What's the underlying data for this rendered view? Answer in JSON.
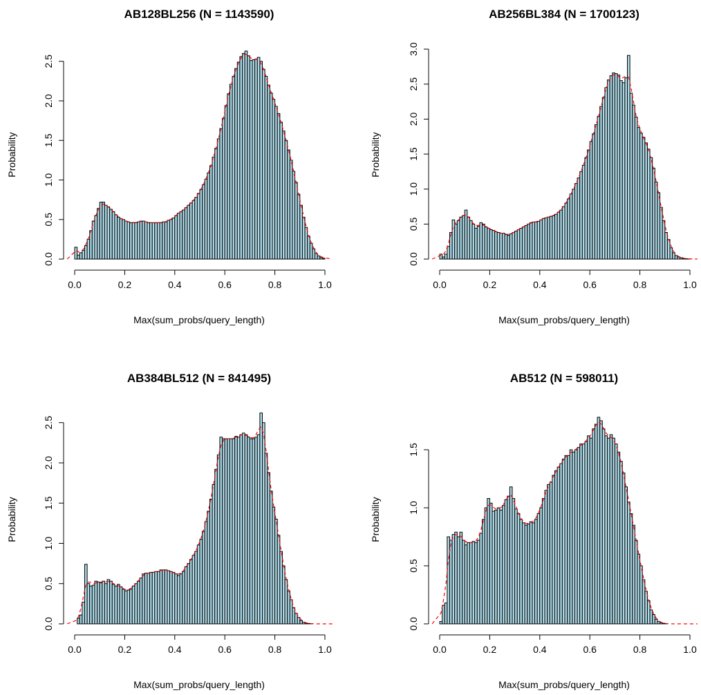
{
  "chart_data": [
    {
      "type": "bar",
      "title": "AB128BL256 (N = 1143590)",
      "xlabel": "Max(sum_probs/query_length)",
      "ylabel": "Probability",
      "xlim": [
        0,
        1
      ],
      "ylim": [
        0,
        2.6
      ],
      "xticks": [
        "0.0",
        "0.2",
        "0.4",
        "0.6",
        "0.8",
        "1.0"
      ],
      "yticks": [
        "0.0",
        "0.5",
        "1.0",
        "1.5",
        "2.0",
        "2.5"
      ],
      "bin_width": 0.01,
      "bar_color": "#add8e6",
      "density_color": "#ff0000",
      "values": [
        0.15,
        0.05,
        0.08,
        0.11,
        0.17,
        0.25,
        0.36,
        0.48,
        0.55,
        0.64,
        0.72,
        0.72,
        0.68,
        0.66,
        0.63,
        0.6,
        0.56,
        0.53,
        0.51,
        0.5,
        0.48,
        0.47,
        0.46,
        0.46,
        0.46,
        0.47,
        0.48,
        0.48,
        0.47,
        0.46,
        0.46,
        0.46,
        0.46,
        0.46,
        0.46,
        0.47,
        0.47,
        0.49,
        0.5,
        0.52,
        0.55,
        0.58,
        0.6,
        0.62,
        0.65,
        0.68,
        0.71,
        0.74,
        0.78,
        0.83,
        0.88,
        0.94,
        1.01,
        1.09,
        1.18,
        1.29,
        1.4,
        1.52,
        1.65,
        1.78,
        1.94,
        2.09,
        2.21,
        2.31,
        2.41,
        2.49,
        2.56,
        2.6,
        2.63,
        2.57,
        2.51,
        2.52,
        2.53,
        2.55,
        2.5,
        2.4,
        2.31,
        2.2,
        2.1,
        2.02,
        1.93,
        1.84,
        1.73,
        1.62,
        1.5,
        1.38,
        1.25,
        1.11,
        0.97,
        0.82,
        0.68,
        0.53,
        0.4,
        0.29,
        0.2,
        0.13,
        0.07,
        0.04,
        0.02,
        0.01
      ]
    },
    {
      "type": "bar",
      "title": "AB256BL384 (N = 1700123)",
      "xlabel": "Max(sum_probs/query_length)",
      "ylabel": "Probability",
      "xlim": [
        0,
        1
      ],
      "ylim": [
        0,
        3.0
      ],
      "xticks": [
        "0.0",
        "0.2",
        "0.4",
        "0.6",
        "0.8",
        "1.0"
      ],
      "yticks": [
        "0.0",
        "0.5",
        "1.0",
        "1.5",
        "2.0",
        "2.5",
        "3.0"
      ],
      "bin_width": 0.01,
      "bar_color": "#add8e6",
      "density_color": "#ff0000",
      "values": [
        0.07,
        0.03,
        0.07,
        0.18,
        0.38,
        0.56,
        0.5,
        0.55,
        0.6,
        0.62,
        0.7,
        0.6,
        0.55,
        0.5,
        0.44,
        0.47,
        0.52,
        0.5,
        0.46,
        0.44,
        0.42,
        0.41,
        0.39,
        0.38,
        0.37,
        0.37,
        0.35,
        0.34,
        0.36,
        0.38,
        0.4,
        0.42,
        0.44,
        0.46,
        0.48,
        0.5,
        0.52,
        0.53,
        0.53,
        0.54,
        0.56,
        0.58,
        0.59,
        0.6,
        0.61,
        0.62,
        0.64,
        0.67,
        0.7,
        0.75,
        0.8,
        0.86,
        0.93,
        1.0,
        1.08,
        1.16,
        1.25,
        1.34,
        1.45,
        1.56,
        1.68,
        1.79,
        1.92,
        2.04,
        2.18,
        2.31,
        2.45,
        2.56,
        2.62,
        2.66,
        2.65,
        2.63,
        2.55,
        2.52,
        2.59,
        2.91,
        2.37,
        2.2,
        2.03,
        1.88,
        1.8,
        1.74,
        1.66,
        1.57,
        1.45,
        1.3,
        1.1,
        0.95,
        0.74,
        0.55,
        0.38,
        0.28,
        0.16,
        0.09,
        0.05,
        0.03,
        0.02,
        0.01,
        0.005,
        0.002
      ]
    },
    {
      "type": "bar",
      "title": "AB384BL512 (N = 841495)",
      "xlabel": "Max(sum_probs/query_length)",
      "ylabel": "Probability",
      "xlim": [
        0,
        1
      ],
      "ylim": [
        0,
        2.6
      ],
      "xticks": [
        "0.0",
        "0.2",
        "0.4",
        "0.6",
        "0.8",
        "1.0"
      ],
      "yticks": [
        "0.0",
        "0.5",
        "1.0",
        "1.5",
        "2.0",
        "2.5"
      ],
      "bin_width": 0.01,
      "bar_color": "#add8e6",
      "density_color": "#ff0000",
      "values": [
        0.0,
        0.07,
        0.11,
        0.27,
        0.74,
        0.5,
        0.47,
        0.48,
        0.53,
        0.52,
        0.51,
        0.53,
        0.5,
        0.55,
        0.53,
        0.49,
        0.47,
        0.49,
        0.46,
        0.43,
        0.41,
        0.42,
        0.43,
        0.47,
        0.5,
        0.53,
        0.57,
        0.62,
        0.63,
        0.63,
        0.64,
        0.64,
        0.65,
        0.65,
        0.67,
        0.67,
        0.67,
        0.66,
        0.65,
        0.64,
        0.62,
        0.6,
        0.62,
        0.65,
        0.71,
        0.75,
        0.8,
        0.85,
        0.9,
        0.98,
        1.05,
        1.15,
        1.27,
        1.4,
        1.55,
        1.73,
        1.92,
        2.1,
        2.32,
        2.3,
        2.3,
        2.3,
        2.3,
        2.3,
        2.33,
        2.32,
        2.35,
        2.37,
        2.35,
        2.32,
        2.3,
        2.3,
        2.32,
        2.35,
        2.62,
        2.5,
        2.12,
        1.88,
        1.65,
        1.45,
        1.3,
        1.1,
        0.9,
        0.72,
        0.55,
        0.41,
        0.3,
        0.2,
        0.13,
        0.08,
        0.04,
        0.02,
        0.01,
        0.005,
        0.002,
        0.0,
        0.0,
        0.0,
        0.0,
        0.0
      ]
    },
    {
      "type": "bar",
      "title": "AB512 (N = 598011)",
      "xlabel": "Max(sum_probs/query_length)",
      "ylabel": "Probability",
      "xlim": [
        0,
        1
      ],
      "ylim": [
        0,
        1.8
      ],
      "xticks": [
        "0.0",
        "0.2",
        "0.4",
        "0.6",
        "0.8",
        "1.0"
      ],
      "yticks": [
        "0.0",
        "0.5",
        "1.0",
        "1.5"
      ],
      "bin_width": 0.01,
      "bar_color": "#add8e6",
      "density_color": "#ff0000",
      "values": [
        0.02,
        0.16,
        0.18,
        0.75,
        0.72,
        0.77,
        0.79,
        0.75,
        0.79,
        0.72,
        0.68,
        0.7,
        0.7,
        0.71,
        0.7,
        0.72,
        0.78,
        0.9,
        1.0,
        1.08,
        1.04,
        0.97,
        0.98,
        1.0,
        0.98,
        1.02,
        1.07,
        1.1,
        1.18,
        1.08,
        0.99,
        0.95,
        0.9,
        0.87,
        0.85,
        0.86,
        0.88,
        0.87,
        0.9,
        0.95,
        1.0,
        1.08,
        1.15,
        1.2,
        1.22,
        1.28,
        1.32,
        1.35,
        1.38,
        1.42,
        1.45,
        1.45,
        1.5,
        1.48,
        1.5,
        1.52,
        1.55,
        1.55,
        1.57,
        1.62,
        1.6,
        1.68,
        1.72,
        1.78,
        1.75,
        1.68,
        1.62,
        1.6,
        1.63,
        1.6,
        1.55,
        1.48,
        1.4,
        1.3,
        1.18,
        1.05,
        0.95,
        0.85,
        0.72,
        0.6,
        0.5,
        0.38,
        0.28,
        0.2,
        0.12,
        0.08,
        0.04,
        0.02,
        0.01,
        0.005,
        0.002,
        0.0,
        0.0,
        0.0,
        0.0,
        0.0,
        0.0,
        0.0,
        0.0,
        0.0
      ]
    }
  ]
}
